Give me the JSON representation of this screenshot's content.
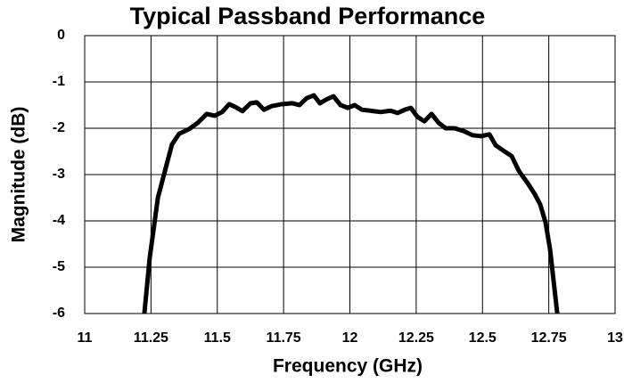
{
  "chart_data": {
    "type": "line",
    "title": "Typical Passband Performance",
    "x_label": "Frequency  (GHz)",
    "y_label": "Magnitude (dB)",
    "xlim": [
      11,
      13
    ],
    "xticks": [
      11,
      11.25,
      11.5,
      11.75,
      12,
      12.25,
      12.5,
      12.75,
      13
    ],
    "ylim": [
      -6,
      0
    ],
    "yticks": [
      0,
      -1,
      -2,
      -3,
      -4,
      -5,
      -6
    ],
    "grid": true,
    "series": [
      {
        "color": "#000000",
        "x": [
          11.225,
          11.245,
          11.276,
          11.306,
          11.329,
          11.356,
          11.393,
          11.427,
          11.46,
          11.49,
          11.518,
          11.545,
          11.568,
          11.595,
          11.625,
          11.649,
          11.676,
          11.706,
          11.743,
          11.783,
          11.81,
          11.837,
          11.864,
          11.887,
          11.914,
          11.938,
          11.965,
          11.992,
          12.018,
          12.045,
          12.076,
          12.116,
          12.153,
          12.18,
          12.207,
          12.23,
          12.254,
          12.281,
          12.308,
          12.334,
          12.361,
          12.395,
          12.429,
          12.462,
          12.496,
          12.526,
          12.55,
          12.583,
          12.61,
          12.637,
          12.671,
          12.697,
          12.718,
          12.738,
          12.755,
          12.768,
          12.782
        ],
        "values": [
          -6,
          -4.81,
          -3.5,
          -2.85,
          -2.35,
          -2.12,
          -2.02,
          -1.88,
          -1.69,
          -1.73,
          -1.65,
          -1.48,
          -1.54,
          -1.63,
          -1.46,
          -1.44,
          -1.6,
          -1.52,
          -1.48,
          -1.46,
          -1.5,
          -1.35,
          -1.29,
          -1.46,
          -1.37,
          -1.31,
          -1.5,
          -1.56,
          -1.5,
          -1.6,
          -1.62,
          -1.65,
          -1.62,
          -1.67,
          -1.6,
          -1.56,
          -1.75,
          -1.85,
          -1.69,
          -1.88,
          -2.0,
          -2.0,
          -2.06,
          -2.15,
          -2.17,
          -2.13,
          -2.37,
          -2.5,
          -2.6,
          -2.92,
          -3.19,
          -3.42,
          -3.65,
          -4.04,
          -4.62,
          -5.29,
          -6
        ]
      }
    ]
  }
}
